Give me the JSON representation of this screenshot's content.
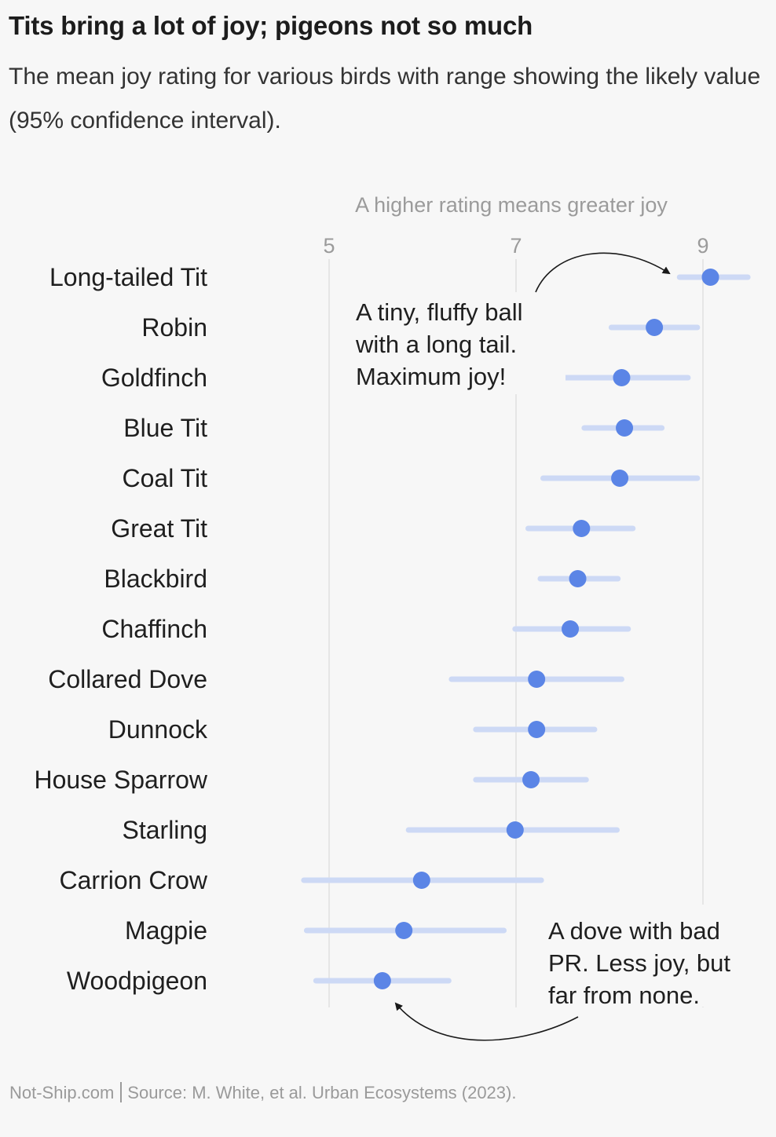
{
  "header": {
    "title": "Tits bring a lot of joy; pigeons not so much",
    "subtitle": "The mean joy rating for various birds with range showing the likely value (95% confidence interval)."
  },
  "footer": {
    "site": "Not-Ship.com",
    "source": "Source: M. White, et al. Urban Ecosystems (2023)."
  },
  "colors": {
    "dot": "#5b85e6",
    "ci": "#cdd9f5",
    "grid": "#e6e6e6",
    "axis_text": "#9b9b9b",
    "label_text": "#1f1f1f",
    "background": "#f7f7f7"
  },
  "chart_data": {
    "type": "dot-range",
    "title": "Tits bring a lot of joy; pigeons not so much",
    "subtitle": "The mean joy rating for various birds with range showing the likely value (95% confidence interval).",
    "xlabel": "A higher rating means greater joy",
    "ylabel": "",
    "xlim": [
      4.7,
      9.5
    ],
    "xticks": [
      5,
      7,
      9
    ],
    "grid": true,
    "categories": [
      "Long-tailed Tit",
      "Robin",
      "Goldfinch",
      "Blue Tit",
      "Coal Tit",
      "Great Tit",
      "Blackbird",
      "Chaffinch",
      "Collared Dove",
      "Dunnock",
      "House Sparrow",
      "Starling",
      "Carrion Crow",
      "Magpie",
      "Woodpigeon"
    ],
    "series": [
      {
        "name": "Mean joy rating",
        "values": [
          9.08,
          8.48,
          8.13,
          8.16,
          8.11,
          7.7,
          7.66,
          7.58,
          7.22,
          7.22,
          7.16,
          6.99,
          5.99,
          5.8,
          5.57
        ]
      },
      {
        "name": "95% CI lower",
        "values": [
          8.75,
          8.02,
          7.46,
          7.73,
          7.29,
          7.13,
          7.26,
          6.99,
          6.31,
          6.57,
          6.57,
          5.85,
          4.73,
          4.76,
          4.86
        ]
      },
      {
        "name": "95% CI upper",
        "values": [
          9.48,
          8.94,
          8.84,
          8.56,
          8.94,
          8.25,
          8.09,
          8.2,
          8.13,
          7.84,
          7.75,
          8.08,
          7.27,
          6.87,
          6.28
        ]
      }
    ],
    "annotations": [
      {
        "text": [
          "A tiny, fluffy ball",
          "with a long tail.",
          "Maximum joy!"
        ],
        "target": "Long-tailed Tit"
      },
      {
        "text": [
          "A dove with bad",
          "PR. Less joy, but",
          "far from none."
        ],
        "target": "Woodpigeon"
      }
    ]
  }
}
